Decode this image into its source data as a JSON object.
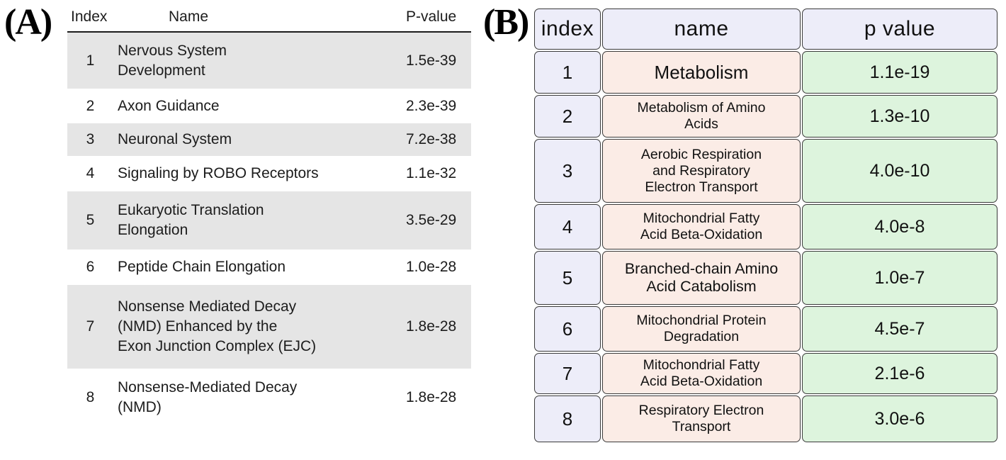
{
  "panels": {
    "a": {
      "label": "(A)",
      "columns": [
        "Index",
        "Name",
        "P-value"
      ],
      "rows": [
        {
          "index": "1",
          "name": "Nervous System\nDevelopment",
          "p": "1.5e-39"
        },
        {
          "index": "2",
          "name": "Axon Guidance",
          "p": "2.3e-39"
        },
        {
          "index": "3",
          "name": "Neuronal System",
          "p": "7.2e-38"
        },
        {
          "index": "4",
          "name": "Signaling by ROBO Receptors",
          "p": "1.1e-32"
        },
        {
          "index": "5",
          "name": "Eukaryotic Translation\nElongation",
          "p": "3.5e-29"
        },
        {
          "index": "6",
          "name": "Peptide Chain Elongation",
          "p": "1.0e-28"
        },
        {
          "index": "7",
          "name": "Nonsense Mediated Decay\n(NMD) Enhanced by the\nExon Junction Complex (EJC)",
          "p": "1.8e-28"
        },
        {
          "index": "8",
          "name": "Nonsense-Mediated Decay\n(NMD)",
          "p": "1.8e-28"
        }
      ],
      "colors": {
        "row_stripe": "#e5e5e5",
        "header_rule": "#1c1c1c"
      }
    },
    "b": {
      "label": "(B)",
      "columns": [
        "index",
        "name",
        "p value"
      ],
      "rows": [
        {
          "index": "1",
          "name": "Metabolism",
          "p": "1.1e-19"
        },
        {
          "index": "2",
          "name": "Metabolism of Amino\nAcids",
          "p": "1.3e-10"
        },
        {
          "index": "3",
          "name": "Aerobic Respiration\nand Respiratory\nElectron Transport",
          "p": "4.0e-10"
        },
        {
          "index": "4",
          "name": "Mitochondrial Fatty\nAcid Beta-Oxidation",
          "p": "4.0e-8"
        },
        {
          "index": "5",
          "name": "Branched-chain Amino\nAcid Catabolism",
          "p": "1.0e-7"
        },
        {
          "index": "6",
          "name": "Mitochondrial Protein\nDegradation",
          "p": "4.5e-7"
        },
        {
          "index": "7",
          "name": "Mitochondrial Fatty\nAcid Beta-Oxidation",
          "p": "2.1e-6"
        },
        {
          "index": "8",
          "name": "Respiratory Electron\nTransport",
          "p": "3.0e-6"
        }
      ],
      "colors": {
        "index_cell": "#ededf9",
        "name_cell": "#fbece6",
        "p_cell": "#ddf4dd",
        "border": "#3a3a3a"
      }
    }
  }
}
